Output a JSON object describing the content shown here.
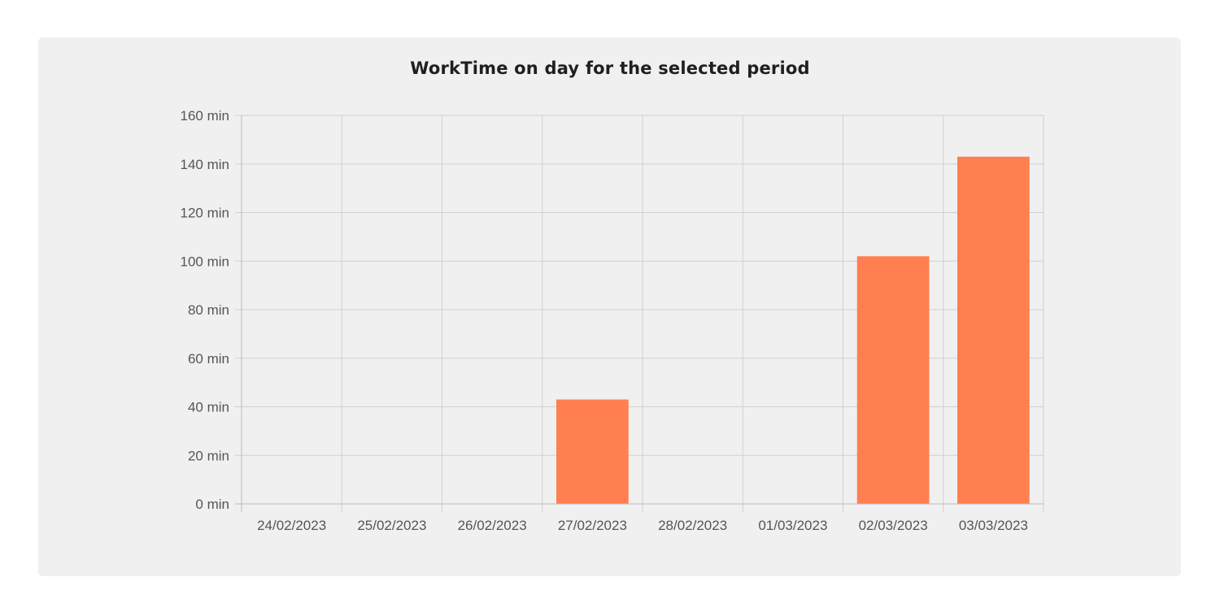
{
  "chart_data": {
    "type": "bar",
    "title": "WorkTime on day for the selected period",
    "categories": [
      "24/02/2023",
      "25/02/2023",
      "26/02/2023",
      "27/02/2023",
      "28/02/2023",
      "01/03/2023",
      "02/03/2023",
      "03/03/2023"
    ],
    "values": [
      0,
      0,
      0,
      43,
      0,
      0,
      102,
      143
    ],
    "ylim": [
      0,
      160
    ],
    "y_ticks": [
      0,
      20,
      40,
      60,
      80,
      100,
      120,
      140,
      160
    ],
    "y_tick_labels": [
      "0 min",
      "20 min",
      "40 min",
      "60 min",
      "80 min",
      "100 min",
      "120 min",
      "140 min",
      "160 min"
    ],
    "grid": true,
    "colors": {
      "bar": "#ff7f50",
      "grid": "#d0d0d0",
      "axis": "#bbbbbb"
    }
  }
}
